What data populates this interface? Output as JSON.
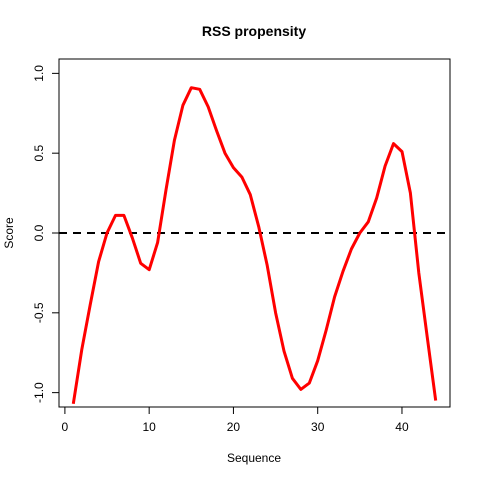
{
  "chart_data": {
    "type": "line",
    "title": "RSS propensity",
    "xlabel": "Sequence",
    "ylabel": "Score",
    "xlim": [
      -0.7,
      45.7
    ],
    "ylim": [
      -1.09,
      1.09
    ],
    "x_ticks": [
      0,
      10,
      20,
      30,
      40
    ],
    "y_ticks": [
      -1.0,
      -0.5,
      0.0,
      0.5,
      1.0
    ],
    "y_tick_labels": [
      "-1.0",
      "-0.5",
      "0.0",
      "0.5",
      "1.0"
    ],
    "grid": false,
    "reference_line": {
      "y": 0.0,
      "style": "dashed",
      "color": "#000000"
    },
    "series": [
      {
        "color": "#ff0000",
        "x": [
          1,
          2,
          3,
          4,
          5,
          6,
          7,
          8,
          9,
          10,
          11,
          12,
          13,
          14,
          15,
          16,
          17,
          18,
          19,
          20,
          21,
          22,
          23,
          24,
          25,
          26,
          27,
          28,
          29,
          30,
          31,
          32,
          33,
          34,
          35,
          36,
          37,
          38,
          39,
          40,
          41,
          42,
          43,
          44
        ],
        "y": [
          -1.07,
          -0.73,
          -0.45,
          -0.18,
          0.0,
          0.11,
          0.11,
          -0.03,
          -0.19,
          -0.23,
          -0.06,
          0.27,
          0.58,
          0.8,
          0.91,
          0.9,
          0.79,
          0.64,
          0.5,
          0.41,
          0.35,
          0.24,
          0.04,
          -0.2,
          -0.5,
          -0.74,
          -0.91,
          -0.98,
          -0.94,
          -0.8,
          -0.61,
          -0.4,
          -0.24,
          -0.1,
          0.0,
          0.07,
          0.22,
          0.42,
          0.56,
          0.51,
          0.25,
          -0.25,
          -0.65,
          -1.05
        ]
      }
    ]
  }
}
